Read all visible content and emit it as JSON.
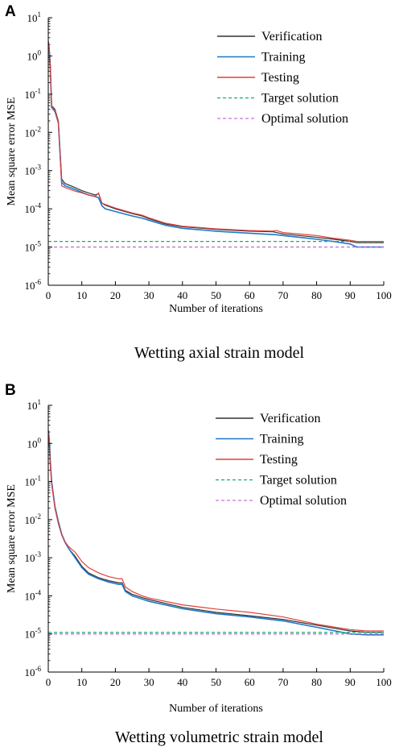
{
  "chart_data": [
    {
      "panel_label": "A",
      "type": "line",
      "caption": "Wetting axial strain model",
      "xlabel": "Number of iterations",
      "ylabel": "Mean square error MSE",
      "xlim": [
        0,
        100
      ],
      "ylim": [
        1e-06,
        10
      ],
      "yscale": "log",
      "x_ticks": [
        "0",
        "10",
        "20",
        "30",
        "40",
        "50",
        "60",
        "70",
        "80",
        "90",
        "100"
      ],
      "y_ticks": [
        {
          "base": "10",
          "exp": "1"
        },
        {
          "base": "10",
          "exp": "0"
        },
        {
          "base": "10",
          "exp": "-1"
        },
        {
          "base": "10",
          "exp": "-2"
        },
        {
          "base": "10",
          "exp": "-3"
        },
        {
          "base": "10",
          "exp": "-4"
        },
        {
          "base": "10",
          "exp": "-5"
        },
        {
          "base": "10",
          "exp": "-6"
        }
      ],
      "legend_position": "top-right",
      "series": [
        {
          "name": "Verification",
          "color": "#333333",
          "x": [
            0,
            0.3,
            0.6,
            1,
            2,
            3,
            4,
            5,
            8,
            10,
            12,
            14,
            15,
            16,
            17,
            20,
            25,
            28,
            30,
            35,
            40,
            50,
            60,
            67,
            68,
            70,
            80,
            85,
            90,
            92,
            95,
            100
          ],
          "y": [
            2.5,
            1.6,
            0.6,
            0.05,
            0.04,
            0.02,
            0.0006,
            0.00046,
            0.00036,
            0.0003,
            0.00026,
            0.00023,
            0.00025,
            0.00014,
            0.000125,
            0.0001,
            7.5e-05,
            6.5e-05,
            5.5e-05,
            4e-05,
            3.4e-05,
            2.9e-05,
            2.6e-05,
            2.5e-05,
            2.4e-05,
            2.2e-05,
            1.8e-05,
            1.6e-05,
            1.4e-05,
            1.3e-05,
            1.3e-05,
            1.3e-05
          ]
        },
        {
          "name": "Training",
          "color": "#1f78c8",
          "x": [
            0,
            0.3,
            0.6,
            1,
            2,
            3,
            4,
            5,
            8,
            10,
            12,
            14,
            15,
            16,
            17,
            20,
            25,
            28,
            30,
            35,
            40,
            50,
            60,
            68,
            70,
            80,
            85,
            90,
            92,
            95,
            100
          ],
          "y": [
            2.0,
            1.3,
            0.5,
            0.045,
            0.035,
            0.018,
            0.0005,
            0.0004,
            0.00032,
            0.00027,
            0.00023,
            0.00021,
            0.000195,
            0.00012,
            0.0001,
            8.5e-05,
            6.5e-05,
            5.7e-05,
            5e-05,
            3.7e-05,
            3.1e-05,
            2.6e-05,
            2.3e-05,
            2.1e-05,
            2e-05,
            1.6e-05,
            1.4e-05,
            1.2e-05,
            1e-05,
            1e-05,
            1e-05
          ]
        },
        {
          "name": "Testing",
          "color": "#e0403a",
          "x": [
            0,
            0.3,
            0.6,
            1,
            2,
            3,
            4,
            5,
            8,
            10,
            12,
            14,
            15,
            16,
            17,
            20,
            25,
            28,
            30,
            35,
            40,
            50,
            60,
            67,
            68,
            70,
            80,
            85,
            90,
            92,
            95,
            100
          ],
          "y": [
            2.2,
            1.4,
            0.55,
            0.048,
            0.038,
            0.019,
            0.0004,
            0.00036,
            0.00029,
            0.00026,
            0.00023,
            0.00021,
            0.00026,
            0.00014,
            0.00013,
            0.000105,
            7.8e-05,
            6.8e-05,
            5.8e-05,
            4.2e-05,
            3.5e-05,
            3e-05,
            2.7e-05,
            2.6e-05,
            2.7e-05,
            2.4e-05,
            2e-05,
            1.7e-05,
            1.5e-05,
            1.4e-05,
            1.4e-05,
            1.4e-05
          ]
        },
        {
          "name": "Target solution",
          "color": "#1aaa6e",
          "dashed": true,
          "x": [
            0,
            100
          ],
          "y": [
            1.4e-05,
            1.4e-05
          ]
        },
        {
          "name": "Optimal solution",
          "color": "#c673d6",
          "dashed": true,
          "x": [
            0,
            100
          ],
          "y": [
            1e-05,
            1e-05
          ]
        }
      ]
    },
    {
      "panel_label": "B",
      "type": "line",
      "caption": "Wetting volumetric strain model",
      "xlabel": "Number of iterations",
      "ylabel": "Mean square error MSE",
      "xlim": [
        0,
        100
      ],
      "ylim": [
        1e-06,
        10
      ],
      "yscale": "log",
      "x_ticks": [
        "0",
        "10",
        "20",
        "30",
        "40",
        "50",
        "60",
        "70",
        "80",
        "90",
        "100"
      ],
      "y_ticks": [
        {
          "base": "10",
          "exp": "1"
        },
        {
          "base": "10",
          "exp": "0"
        },
        {
          "base": "10",
          "exp": "-1"
        },
        {
          "base": "10",
          "exp": "-2"
        },
        {
          "base": "10",
          "exp": "-3"
        },
        {
          "base": "10",
          "exp": "-4"
        },
        {
          "base": "10",
          "exp": "-5"
        },
        {
          "base": "10",
          "exp": "-6"
        }
      ],
      "legend_position": "top-right",
      "series": [
        {
          "name": "Verification",
          "color": "#333333",
          "x": [
            0,
            0.3,
            0.6,
            1,
            2,
            3,
            4,
            5,
            6,
            8,
            10,
            12,
            15,
            18,
            21,
            22,
            23,
            25,
            28,
            30,
            40,
            50,
            60,
            70,
            80,
            90,
            95,
            100
          ],
          "y": [
            2.0,
            1.2,
            0.3,
            0.09,
            0.02,
            0.008,
            0.004,
            0.0025,
            0.0018,
            0.0011,
            0.0006,
            0.0004,
            0.0003,
            0.00025,
            0.00022,
            0.00022,
            0.00014,
            0.00011,
            9e-05,
            8e-05,
            5e-05,
            3.7e-05,
            3e-05,
            2.4e-05,
            1.7e-05,
            1.2e-05,
            1.1e-05,
            1.1e-05
          ]
        },
        {
          "name": "Training",
          "color": "#1f78c8",
          "x": [
            0,
            0.3,
            0.6,
            1,
            2,
            3,
            4,
            5,
            6,
            8,
            10,
            12,
            15,
            18,
            21,
            22,
            23,
            25,
            28,
            30,
            40,
            50,
            60,
            70,
            80,
            90,
            95,
            100
          ],
          "y": [
            2.2,
            1.3,
            0.35,
            0.1,
            0.022,
            0.009,
            0.0042,
            0.0026,
            0.0018,
            0.001,
            0.00055,
            0.00037,
            0.00028,
            0.00023,
            0.0002,
            0.0002,
            0.00013,
            0.0001,
            8.2e-05,
            7.2e-05,
            4.6e-05,
            3.4e-05,
            2.8e-05,
            2.2e-05,
            1.5e-05,
            1e-05,
            9.5e-06,
            9.5e-06
          ]
        },
        {
          "name": "Testing",
          "color": "#e0403a",
          "x": [
            0,
            0.3,
            0.6,
            1,
            2,
            3,
            4,
            5,
            6,
            8,
            10,
            12,
            15,
            18,
            21,
            22,
            23,
            25,
            28,
            30,
            40,
            50,
            60,
            70,
            80,
            90,
            95,
            100
          ],
          "y": [
            1.9,
            1.1,
            0.28,
            0.085,
            0.02,
            0.008,
            0.004,
            0.0026,
            0.002,
            0.0014,
            0.0008,
            0.00055,
            0.0004,
            0.00032,
            0.00028,
            0.00028,
            0.00017,
            0.00013,
            0.0001,
            8.8e-05,
            5.8e-05,
            4.5e-05,
            3.7e-05,
            2.8e-05,
            1.8e-05,
            1.3e-05,
            1.2e-05,
            1.2e-05
          ]
        },
        {
          "name": "Target solution",
          "color": "#1aaa6e",
          "dashed": true,
          "x": [
            0,
            100
          ],
          "y": [
            1.1e-05,
            1.1e-05
          ]
        },
        {
          "name": "Optimal solution",
          "color": "#c673d6",
          "dashed": true,
          "x": [
            0,
            100
          ],
          "y": [
            1e-05,
            1e-05
          ]
        }
      ]
    }
  ]
}
